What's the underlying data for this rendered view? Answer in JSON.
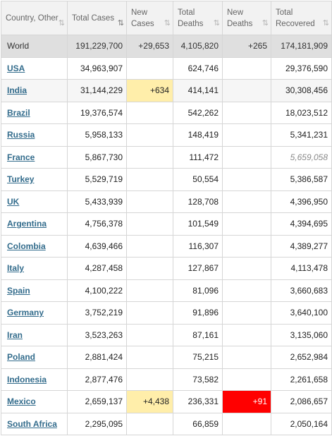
{
  "columns": [
    {
      "label": "Country, Other",
      "sort": "⇅",
      "active": false
    },
    {
      "label": "Total Cases",
      "sort": "⇅",
      "active": true
    },
    {
      "label": "New Cases",
      "sort": "⇅",
      "active": false
    },
    {
      "label": "Total Deaths",
      "sort": "⇅",
      "active": false
    },
    {
      "label": "New Deaths",
      "sort": "⇅",
      "active": false
    },
    {
      "label": "Total Recovered",
      "sort": "⇅",
      "active": false
    }
  ],
  "highlight_colors": {
    "new_cases": "#ffeeaa",
    "new_deaths": "#ff0000",
    "link": "#336c8c"
  },
  "rows": [
    {
      "country": "World",
      "total_cases": "191,229,700",
      "new_cases": "+29,653",
      "total_deaths": "4,105,820",
      "new_deaths": "+265",
      "total_recovered": "174,181,909",
      "is_world": true
    },
    {
      "country": "USA",
      "total_cases": "34,963,907",
      "new_cases": "",
      "total_deaths": "624,746",
      "new_deaths": "",
      "total_recovered": "29,376,590"
    },
    {
      "country": "India",
      "total_cases": "31,144,229",
      "new_cases": "+634",
      "total_deaths": "414,141",
      "new_deaths": "",
      "total_recovered": "30,308,456",
      "alt": true
    },
    {
      "country": "Brazil",
      "total_cases": "19,376,574",
      "new_cases": "",
      "total_deaths": "542,262",
      "new_deaths": "",
      "total_recovered": "18,023,512"
    },
    {
      "country": "Russia",
      "total_cases": "5,958,133",
      "new_cases": "",
      "total_deaths": "148,419",
      "new_deaths": "",
      "total_recovered": "5,341,231"
    },
    {
      "country": "France",
      "total_cases": "5,867,730",
      "new_cases": "",
      "total_deaths": "111,472",
      "new_deaths": "",
      "total_recovered": "5,659,058",
      "recovered_italic": true
    },
    {
      "country": "Turkey",
      "total_cases": "5,529,719",
      "new_cases": "",
      "total_deaths": "50,554",
      "new_deaths": "",
      "total_recovered": "5,386,587"
    },
    {
      "country": "UK",
      "total_cases": "5,433,939",
      "new_cases": "",
      "total_deaths": "128,708",
      "new_deaths": "",
      "total_recovered": "4,396,950"
    },
    {
      "country": "Argentina",
      "total_cases": "4,756,378",
      "new_cases": "",
      "total_deaths": "101,549",
      "new_deaths": "",
      "total_recovered": "4,394,695"
    },
    {
      "country": "Colombia",
      "total_cases": "4,639,466",
      "new_cases": "",
      "total_deaths": "116,307",
      "new_deaths": "",
      "total_recovered": "4,389,277"
    },
    {
      "country": "Italy",
      "total_cases": "4,287,458",
      "new_cases": "",
      "total_deaths": "127,867",
      "new_deaths": "",
      "total_recovered": "4,113,478"
    },
    {
      "country": "Spain",
      "total_cases": "4,100,222",
      "new_cases": "",
      "total_deaths": "81,096",
      "new_deaths": "",
      "total_recovered": "3,660,683"
    },
    {
      "country": "Germany",
      "total_cases": "3,752,219",
      "new_cases": "",
      "total_deaths": "91,896",
      "new_deaths": "",
      "total_recovered": "3,640,100"
    },
    {
      "country": "Iran",
      "total_cases": "3,523,263",
      "new_cases": "",
      "total_deaths": "87,161",
      "new_deaths": "",
      "total_recovered": "3,135,060"
    },
    {
      "country": "Poland",
      "total_cases": "2,881,424",
      "new_cases": "",
      "total_deaths": "75,215",
      "new_deaths": "",
      "total_recovered": "2,652,984"
    },
    {
      "country": "Indonesia",
      "total_cases": "2,877,476",
      "new_cases": "",
      "total_deaths": "73,582",
      "new_deaths": "",
      "total_recovered": "2,261,658"
    },
    {
      "country": "Mexico",
      "total_cases": "2,659,137",
      "new_cases": "+4,438",
      "total_deaths": "236,331",
      "new_deaths": "+91",
      "total_recovered": "2,086,657"
    },
    {
      "country": "South Africa",
      "total_cases": "2,295,095",
      "new_cases": "",
      "total_deaths": "66,859",
      "new_deaths": "",
      "total_recovered": "2,050,164"
    }
  ]
}
